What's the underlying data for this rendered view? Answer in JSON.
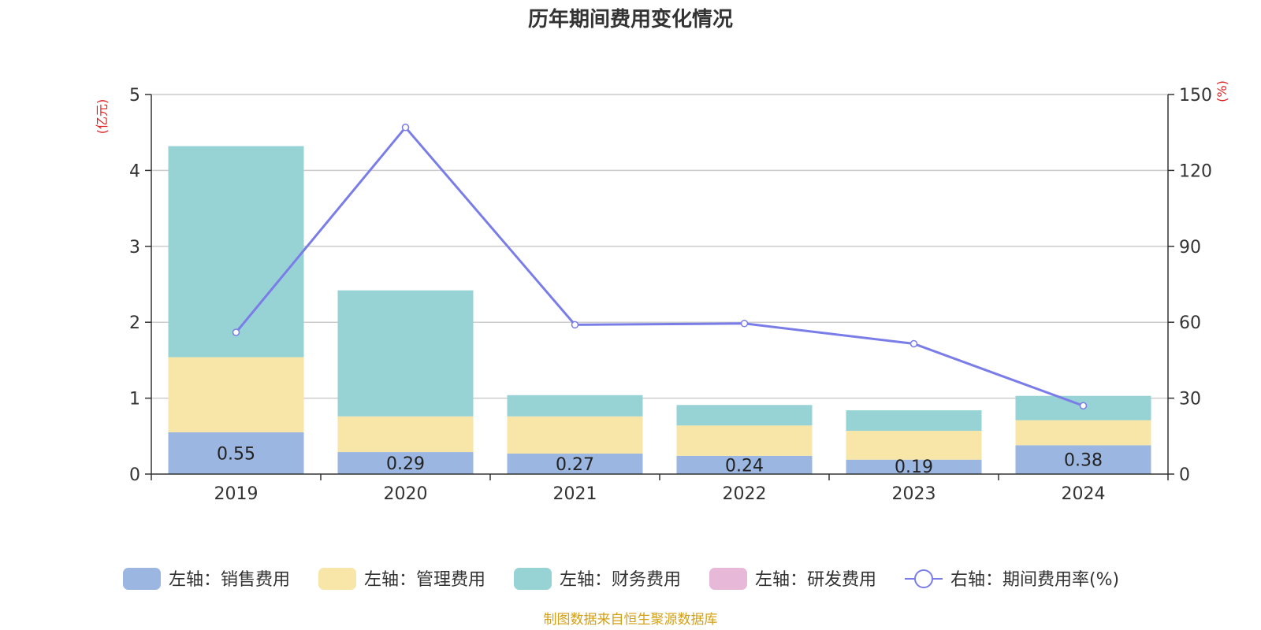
{
  "chart_data": {
    "type": "bar",
    "title": "历年期间费用变化情况",
    "categories": [
      "2019",
      "2020",
      "2021",
      "2022",
      "2023",
      "2024"
    ],
    "stacked": true,
    "left_axis": {
      "unit": "(亿元)",
      "ylim": [
        0,
        5
      ],
      "ticks": [
        "0",
        "1",
        "2",
        "3",
        "4",
        "5"
      ]
    },
    "right_axis": {
      "unit": "(%)",
      "ylim": [
        0,
        150
      ],
      "ticks": [
        "0",
        "30",
        "60",
        "90",
        "120",
        "150"
      ]
    },
    "series": [
      {
        "name": "左轴：销售费用",
        "axis": "left",
        "type": "bar",
        "color": "#9bb6e0",
        "values": [
          0.55,
          0.29,
          0.27,
          0.24,
          0.19,
          0.38
        ],
        "labels": [
          "0.55",
          "0.29",
          "0.27",
          "0.24",
          "0.19",
          "0.38"
        ]
      },
      {
        "name": "左轴：管理费用",
        "axis": "left",
        "type": "bar",
        "color": "#f7e6a8",
        "values": [
          0.99,
          0.47,
          0.49,
          0.4,
          0.38,
          0.33
        ]
      },
      {
        "name": "左轴：财务费用",
        "axis": "left",
        "type": "bar",
        "color": "#97d3d4",
        "values": [
          2.78,
          1.66,
          0.28,
          0.27,
          0.27,
          0.32
        ]
      },
      {
        "name": "左轴：研发费用",
        "axis": "left",
        "type": "bar",
        "color": "#e8b8d8",
        "values": [
          0,
          0,
          0,
          0,
          0,
          0
        ]
      },
      {
        "name": "右轴：期间费用率(%)",
        "axis": "right",
        "type": "line",
        "color": "#7a7de8",
        "values": [
          56,
          137,
          59,
          59.5,
          51.5,
          27
        ]
      }
    ],
    "grid": true,
    "legend_position": "bottom"
  },
  "footer": {
    "source": "制图数据来自恒生聚源数据库"
  }
}
